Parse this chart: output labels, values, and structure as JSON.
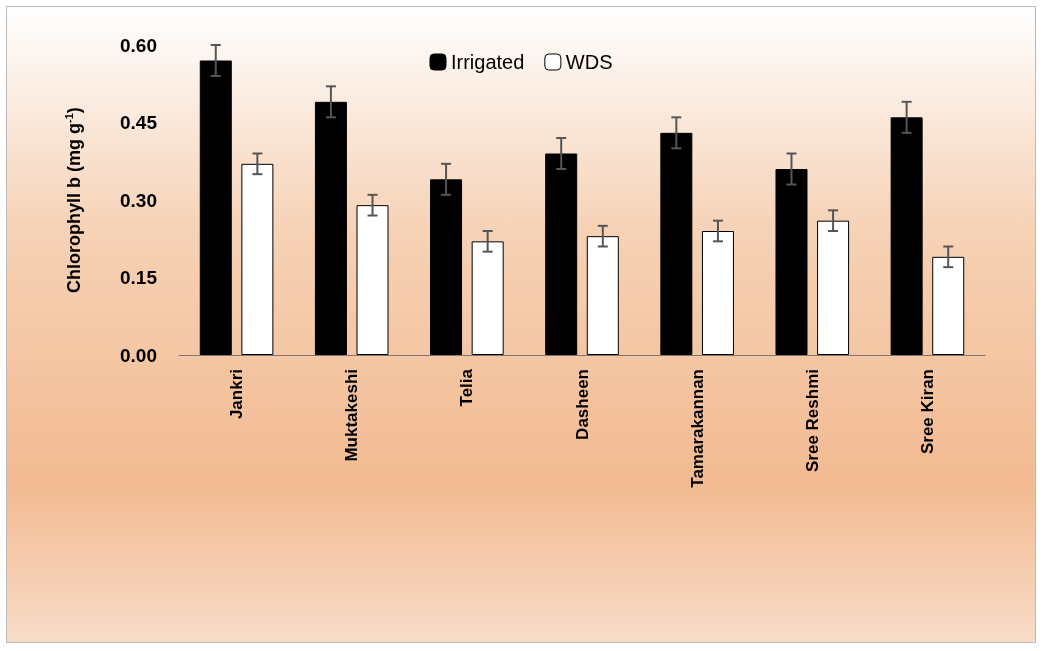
{
  "chart_data": {
    "type": "bar",
    "ylabel": "Chlorophyll b (mg g$^{-1}$)",
    "categories": [
      "Jankri",
      "Muktakeshi",
      "Telia",
      "Dasheen",
      "Tamarakannan",
      "Sree Reshmi",
      "Sree Kiran"
    ],
    "series": [
      {
        "name": "Irrigated",
        "color": "#000000",
        "values": [
          0.57,
          0.49,
          0.34,
          0.39,
          0.43,
          0.36,
          0.46
        ],
        "errors": [
          0.03,
          0.03,
          0.03,
          0.03,
          0.03,
          0.03,
          0.03
        ]
      },
      {
        "name": "WDS",
        "color": "#ffffff",
        "values": [
          0.37,
          0.29,
          0.22,
          0.23,
          0.24,
          0.26,
          0.19
        ],
        "errors": [
          0.02,
          0.02,
          0.02,
          0.02,
          0.02,
          0.02,
          0.02
        ]
      }
    ],
    "ylim": [
      0,
      0.6
    ],
    "yticks": [
      {
        "value": 0,
        "label": "0.00"
      },
      {
        "value": 0.15,
        "label": "0.15"
      },
      {
        "value": 0.3,
        "label": "0.30"
      },
      {
        "value": 0.45,
        "label": "0.45"
      },
      {
        "value": 0.6,
        "label": "0.60"
      }
    ],
    "grid": false,
    "legend": "top"
  }
}
